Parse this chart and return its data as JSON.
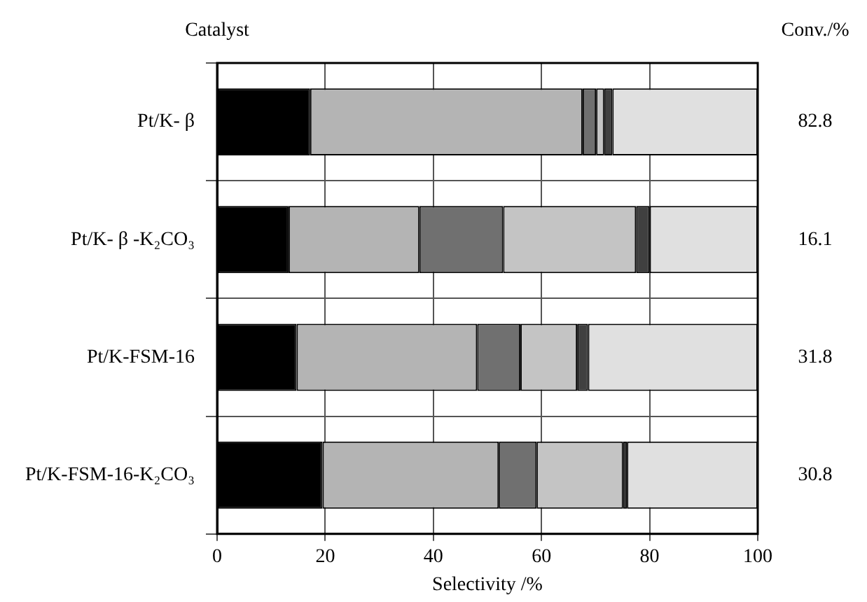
{
  "chart_data": {
    "type": "bar",
    "orientation": "horizontal",
    "stacked": true,
    "ylabel": "Catalyst",
    "y2label": "Conv./%",
    "xlabel": "Selectivity /%",
    "categories": [
      "Pt/K- β",
      "Pt/K- β -K₂CO₃",
      "Pt/K-FSM-16",
      "Pt/K-FSM-16-K₂CO₃"
    ],
    "series": [
      {
        "color": "#000000",
        "values": [
          17.2,
          13.2,
          14.7,
          19.5
        ]
      },
      {
        "color": "#b4b4b4",
        "values": [
          50.4,
          24.2,
          33.4,
          32.6
        ]
      },
      {
        "color": "#707070",
        "values": [
          2.5,
          15.5,
          8.0,
          7.0
        ]
      },
      {
        "color": "#c4c4c4",
        "values": [
          1.5,
          24.6,
          10.5,
          16.0
        ]
      },
      {
        "color": "#404040",
        "values": [
          1.5,
          2.5,
          2.0,
          0.7
        ]
      },
      {
        "color": "#e0e0e0",
        "values": [
          26.9,
          20.0,
          31.4,
          24.2
        ]
      }
    ],
    "xlim": [
      0,
      100
    ],
    "xticks": [
      0,
      20,
      40,
      60,
      80,
      100
    ],
    "grid": true,
    "legend": false,
    "annotations": [
      "82.8",
      "16.1",
      "31.8",
      "30.8"
    ]
  }
}
